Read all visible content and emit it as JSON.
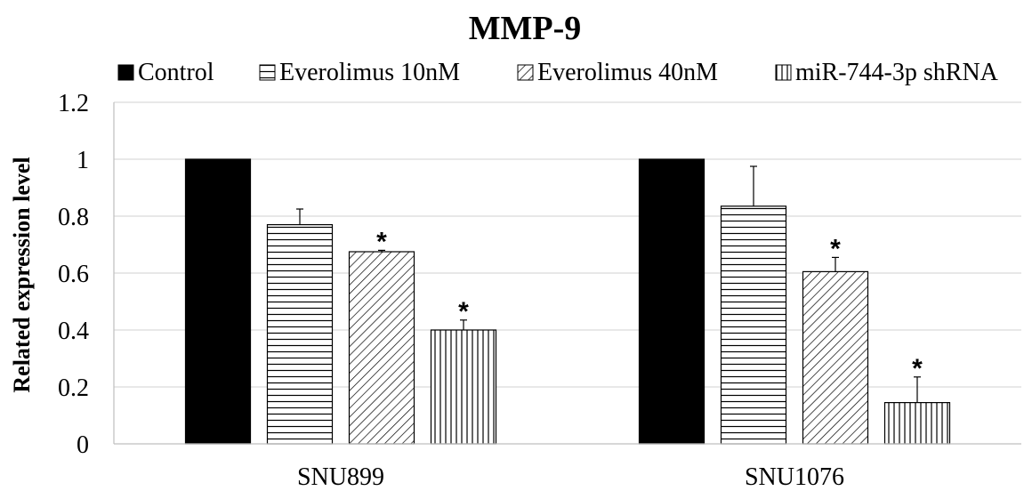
{
  "chart_data": {
    "type": "bar",
    "title": "MMP-9",
    "ylabel": "Related expression level",
    "xlabel": "",
    "categories": [
      "SNU899",
      "SNU1076"
    ],
    "ylim": [
      0,
      1.2
    ],
    "yticks": [
      0,
      0.2,
      0.4,
      0.6,
      0.8,
      1,
      1.2
    ],
    "ytick_labels": [
      "0",
      "0.2",
      "0.4",
      "0.6",
      "0.8",
      "1",
      "1.2"
    ],
    "grid": true,
    "legend_position": "top",
    "series": [
      {
        "name": "Control",
        "pattern": "solid",
        "color": "#000000",
        "values": [
          1.0,
          1.0
        ],
        "errors": [
          0,
          0
        ],
        "significant": [
          false,
          false
        ]
      },
      {
        "name": "Everolimus 10nM",
        "pattern": "horizontal-lines",
        "color": "#000000",
        "values": [
          0.77,
          0.835
        ],
        "errors": [
          0.055,
          0.14
        ],
        "significant": [
          false,
          false
        ]
      },
      {
        "name": "Everolimus 40nM",
        "pattern": "diagonal-lines",
        "color": "#000000",
        "values": [
          0.675,
          0.605
        ],
        "errors": [
          0.005,
          0.05
        ],
        "significant": [
          true,
          true
        ]
      },
      {
        "name": "miR-744-3p shRNA",
        "pattern": "vertical-lines",
        "color": "#000000",
        "values": [
          0.4,
          0.145
        ],
        "errors": [
          0.035,
          0.09
        ],
        "significant": [
          true,
          true
        ]
      }
    ],
    "significance_marker": "*"
  }
}
